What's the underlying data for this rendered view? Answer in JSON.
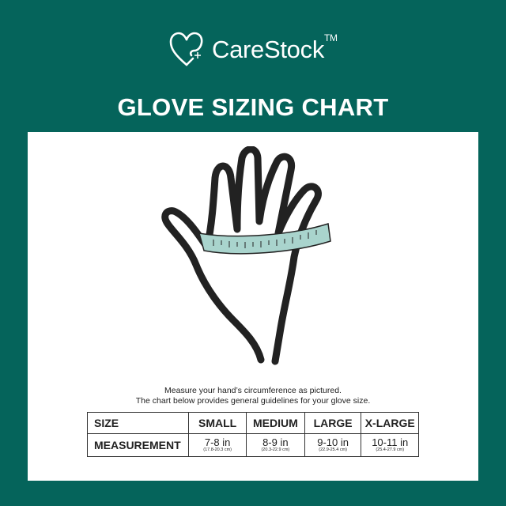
{
  "brand": {
    "name": "CareStock",
    "trademark": "TM",
    "icon": "heart-plus-icon"
  },
  "title": "GLOVE SIZING CHART",
  "illustration": {
    "icon": "hand-with-measuring-tape"
  },
  "instructions": [
    "Measure your hand’s circumference as pictured.",
    "The chart below provides general guidelines for your glove size."
  ],
  "table": {
    "header_label": "SIZE",
    "row_label": "MEASUREMENT",
    "columns": [
      {
        "size": "SMALL",
        "inches": "7-8 in",
        "cm": "(17.8-20.3 cm)"
      },
      {
        "size": "MEDIUM",
        "inches": "8-9 in",
        "cm": "(20.3-22.9 cm)"
      },
      {
        "size": "LARGE",
        "inches": "9-10 in",
        "cm": "(22.9-25.4 cm)"
      },
      {
        "size": "X-LARGE",
        "inches": "10-11 in",
        "cm": "(25.4-27.9 cm)"
      }
    ]
  },
  "colors": {
    "background": "#05645b",
    "panel": "#ffffff",
    "tape": "#a9d4cd"
  }
}
